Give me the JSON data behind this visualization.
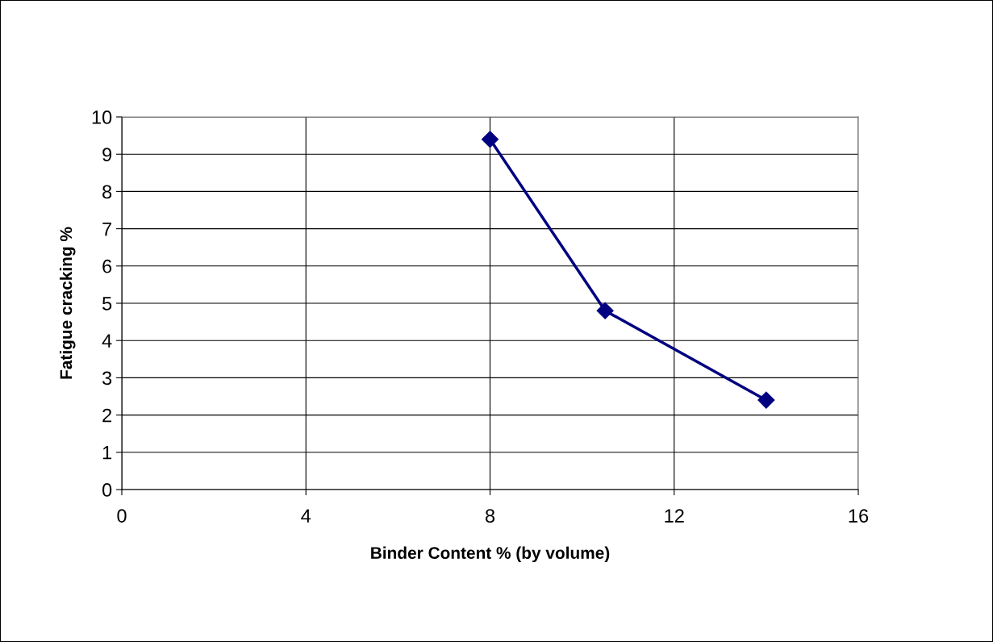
{
  "chart_data": {
    "type": "line",
    "xlabel": "Binder Content % (by volume)",
    "ylabel": "Fatigue cracking %",
    "x": [
      8,
      10.5,
      14
    ],
    "series": [
      {
        "color": "#000080",
        "values": [
          9.4,
          4.8,
          2.4
        ]
      }
    ],
    "xlim": [
      0,
      16
    ],
    "xticks": [
      0,
      4,
      8,
      12,
      16
    ],
    "ylim": [
      0,
      10
    ],
    "yticks": [
      0,
      1,
      2,
      3,
      4,
      5,
      6,
      7,
      8,
      9,
      10
    ],
    "grid": true,
    "marker": "diamond",
    "line_style": "solid",
    "legend": false
  }
}
